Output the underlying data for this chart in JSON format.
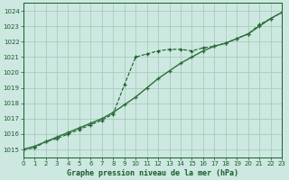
{
  "title": "Graphe pression niveau de la mer (hPa)",
  "bg_color": "#cce8e0",
  "plot_bg_color": "#cce8e0",
  "grid_color": "#aaccbb",
  "line_color1": "#1a5c2a",
  "line_color2": "#2d6e3a",
  "xlim": [
    0,
    23
  ],
  "ylim": [
    1014.5,
    1024.5
  ],
  "yticks": [
    1015,
    1016,
    1017,
    1018,
    1019,
    1020,
    1021,
    1022,
    1023,
    1024
  ],
  "xticks": [
    0,
    1,
    2,
    3,
    4,
    5,
    6,
    7,
    8,
    9,
    10,
    11,
    12,
    13,
    14,
    15,
    16,
    17,
    18,
    19,
    20,
    21,
    22,
    23
  ],
  "series1_x": [
    0,
    1,
    2,
    3,
    4,
    5,
    6,
    7,
    8,
    9,
    10,
    11,
    12,
    13,
    14,
    15,
    16,
    17,
    18,
    19,
    20,
    21,
    22,
    23
  ],
  "series1_y": [
    1015.0,
    1015.1,
    1015.5,
    1015.7,
    1016.0,
    1016.3,
    1016.6,
    1016.9,
    1017.3,
    1019.2,
    1021.0,
    1021.2,
    1021.4,
    1021.5,
    1021.5,
    1021.4,
    1021.6,
    1021.7,
    1021.9,
    1022.2,
    1022.5,
    1023.1,
    1023.5,
    1023.9
  ],
  "series2_x": [
    0,
    1,
    2,
    3,
    4,
    5,
    6,
    7,
    8,
    9,
    10,
    11,
    12,
    13,
    14,
    15,
    16,
    17,
    18,
    19,
    20,
    21,
    22,
    23
  ],
  "series2_y": [
    1015.0,
    1015.2,
    1015.5,
    1015.8,
    1016.1,
    1016.4,
    1016.7,
    1017.0,
    1017.4,
    1017.9,
    1018.4,
    1019.0,
    1019.6,
    1020.1,
    1020.6,
    1021.0,
    1021.4,
    1021.7,
    1021.9,
    1022.2,
    1022.5,
    1023.0,
    1023.5,
    1023.9
  ],
  "title_color": "#1a5c2a",
  "title_fontsize": 6,
  "tick_labelsize": 5
}
